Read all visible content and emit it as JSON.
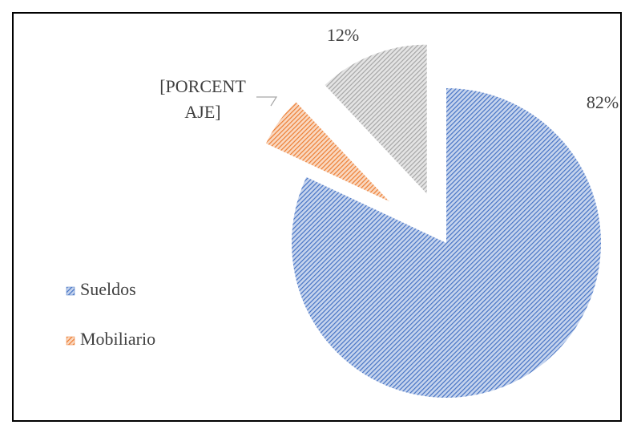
{
  "chart_data": {
    "type": "pie",
    "categories": [
      "Sueldos",
      "Mobiliario",
      null
    ],
    "values": [
      82,
      6,
      12
    ],
    "value_labels": [
      "82%",
      "[PORCENTAJE]",
      "12%"
    ],
    "colors": [
      "#4472c4",
      "#ed7d31",
      "#a5a5a5"
    ],
    "legend": "left"
  }
}
